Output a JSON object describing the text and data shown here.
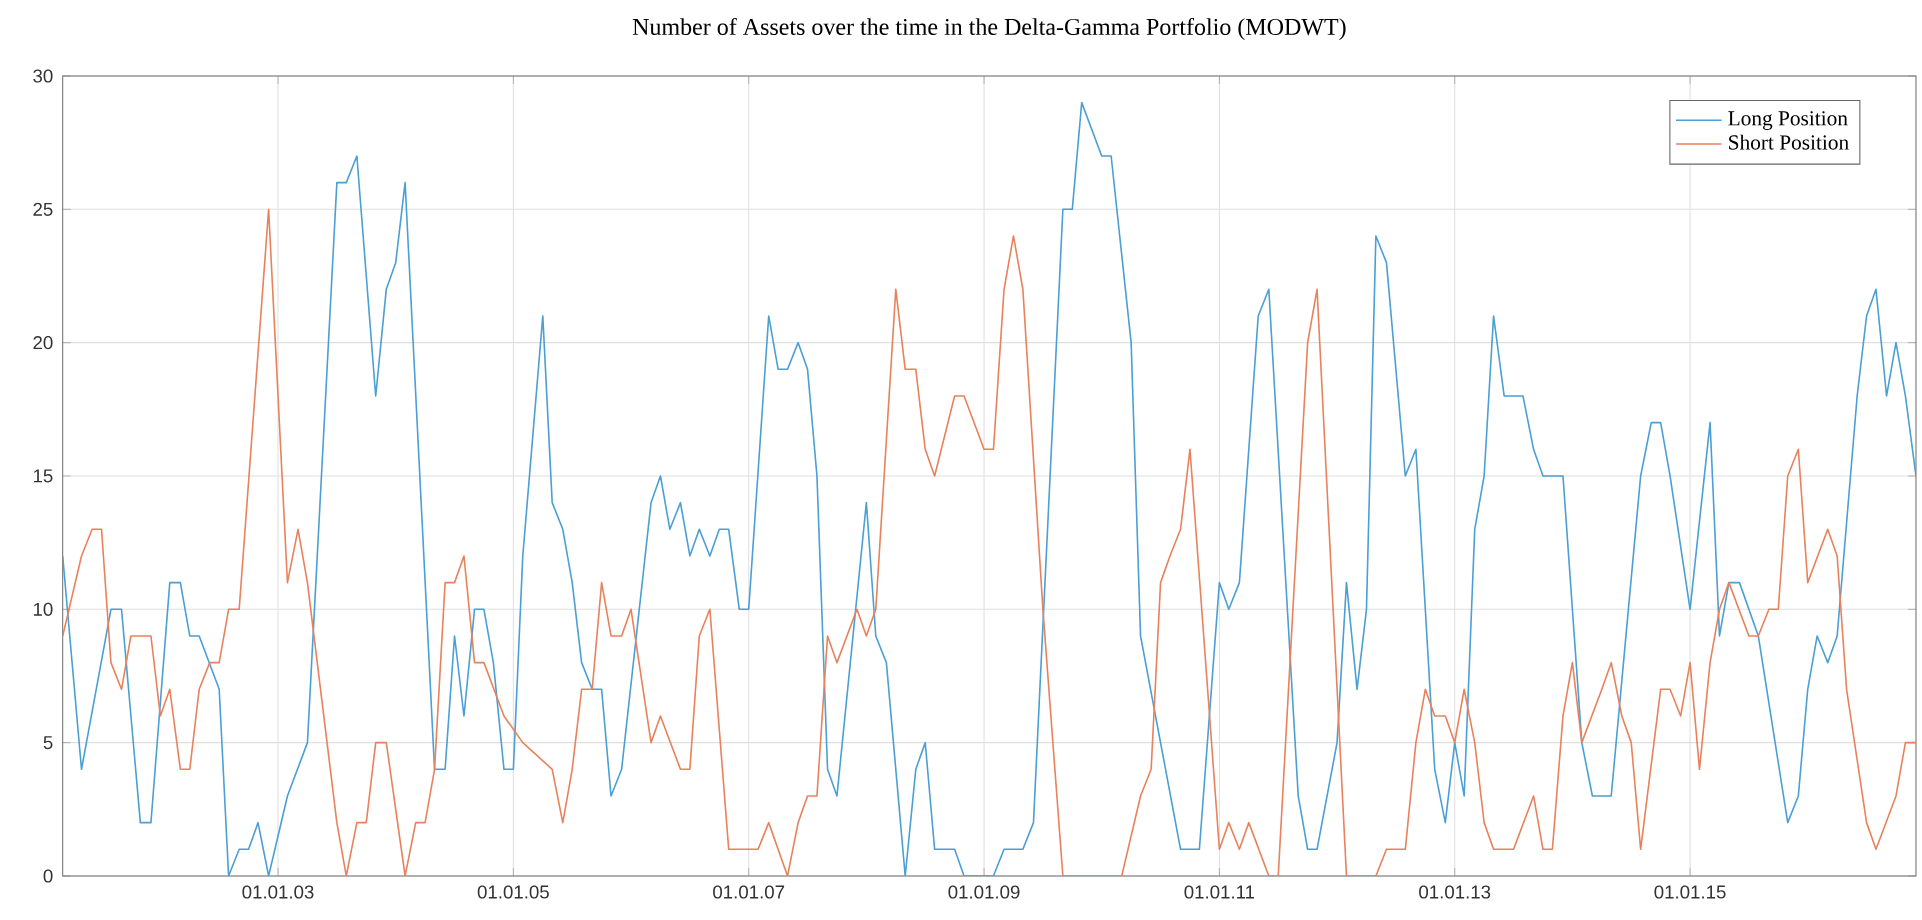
{
  "chart_data": {
    "type": "line",
    "title": "Number of Assets over the time in the Delta-Gamma Portfolio (MODWT)",
    "xlim": [
      "2001-03",
      "2016-12"
    ],
    "ylim": [
      0,
      30
    ],
    "xticks": [
      {
        "value": "2003-01-01",
        "label": "01.01.03"
      },
      {
        "value": "2005-01-01",
        "label": "01.01.05"
      },
      {
        "value": "2007-01-01",
        "label": "01.01.07"
      },
      {
        "value": "2009-01-01",
        "label": "01.01.09"
      },
      {
        "value": "2011-01-01",
        "label": "01.01.11"
      },
      {
        "value": "2013-01-01",
        "label": "01.01.13"
      },
      {
        "value": "2015-01-01",
        "label": "01.01.15"
      }
    ],
    "yticks": [
      0,
      5,
      10,
      15,
      20,
      25,
      30
    ],
    "grid": true,
    "legend": "top right",
    "series": [
      {
        "name": "Long Position",
        "color": "#4a9fd4",
        "x": [
          "2001-03",
          "2001-05",
          "2001-08",
          "2001-09",
          "2001-11",
          "2001-12",
          "2002-02",
          "2002-03",
          "2002-04",
          "2002-05",
          "2002-07",
          "2002-08",
          "2002-09",
          "2002-10",
          "2002-11",
          "2002-12",
          "2003-02",
          "2003-04",
          "2003-07",
          "2003-08",
          "2003-09",
          "2003-11",
          "2003-12",
          "2004-01",
          "2004-02",
          "2004-05",
          "2004-06",
          "2004-07",
          "2004-08",
          "2004-09",
          "2004-10",
          "2004-11",
          "2004-12",
          "2005-01",
          "2005-02",
          "2005-04",
          "2005-05",
          "2005-06",
          "2005-07",
          "2005-08",
          "2005-09",
          "2005-10",
          "2005-11",
          "2005-12",
          "2006-03",
          "2006-04",
          "2006-05",
          "2006-06",
          "2006-07",
          "2006-08",
          "2006-09",
          "2006-10",
          "2006-11",
          "2006-12",
          "2007-01",
          "2007-03",
          "2007-04",
          "2007-05",
          "2007-06",
          "2007-07",
          "2007-08",
          "2007-09",
          "2007-10",
          "2008-01",
          "2008-02",
          "2008-03",
          "2008-05",
          "2008-06",
          "2008-07",
          "2008-08",
          "2008-10",
          "2008-11",
          "2009-02",
          "2009-03",
          "2009-05",
          "2009-06",
          "2009-09",
          "2009-10",
          "2009-11",
          "2010-01",
          "2010-02",
          "2010-04",
          "2010-05",
          "2010-07",
          "2010-09",
          "2010-11",
          "2011-01",
          "2011-02",
          "2011-03",
          "2011-05",
          "2011-06",
          "2011-09",
          "2011-10",
          "2011-11",
          "2012-01",
          "2012-02",
          "2012-03",
          "2012-04",
          "2012-05",
          "2012-06",
          "2012-08",
          "2012-09",
          "2012-11",
          "2012-12",
          "2013-01",
          "2013-02",
          "2013-03",
          "2013-04",
          "2013-05",
          "2013-06",
          "2013-08",
          "2013-09",
          "2013-10",
          "2013-11",
          "2013-12",
          "2014-02",
          "2014-03",
          "2014-05",
          "2014-08",
          "2014-09",
          "2014-10",
          "2014-11",
          "2015-01",
          "2015-03",
          "2015-04",
          "2015-05",
          "2015-06",
          "2015-08",
          "2015-11",
          "2015-12",
          "2016-01",
          "2016-02",
          "2016-03",
          "2016-04",
          "2016-06",
          "2016-07",
          "2016-08",
          "2016-09",
          "2016-10",
          "2016-11",
          "2016-12"
        ],
        "values": [
          12,
          4,
          10,
          10,
          2,
          2,
          11,
          11,
          9,
          9,
          7,
          0,
          1,
          1,
          2,
          0,
          3,
          5,
          26,
          26,
          27,
          18,
          22,
          23,
          26,
          4,
          4,
          9,
          6,
          10,
          10,
          8,
          4,
          4,
          12,
          21,
          14,
          13,
          11,
          8,
          7,
          7,
          3,
          4,
          14,
          15,
          13,
          14,
          12,
          13,
          12,
          13,
          13,
          10,
          10,
          21,
          19,
          19,
          20,
          19,
          15,
          4,
          3,
          14,
          9,
          8,
          0,
          4,
          5,
          1,
          1,
          0,
          0,
          1,
          1,
          2,
          25,
          25,
          29,
          27,
          27,
          20,
          9,
          5,
          1,
          1,
          11,
          10,
          11,
          21,
          22,
          3,
          1,
          1,
          5,
          11,
          7,
          10,
          24,
          23,
          15,
          16,
          4,
          2,
          5,
          3,
          13,
          15,
          21,
          18,
          18,
          16,
          15,
          15,
          15,
          5,
          3,
          3,
          15,
          17,
          17,
          15,
          10,
          17,
          9,
          11,
          11,
          9,
          2,
          3,
          7,
          9,
          8,
          9,
          18,
          21,
          22,
          18,
          20,
          18,
          15
        ]
      },
      {
        "name": "Short Position",
        "color": "#e8815c",
        "x": [
          "2001-03",
          "2001-05",
          "2001-06",
          "2001-07",
          "2001-08",
          "2001-09",
          "2001-10",
          "2001-12",
          "2002-01",
          "2002-02",
          "2002-03",
          "2002-04",
          "2002-05",
          "2002-06",
          "2002-07",
          "2002-08",
          "2002-09",
          "2002-12",
          "2003-02",
          "2003-03",
          "2003-04",
          "2003-07",
          "2003-08",
          "2003-09",
          "2003-10",
          "2003-11",
          "2003-12",
          "2004-02",
          "2004-03",
          "2004-04",
          "2004-05",
          "2004-06",
          "2004-07",
          "2004-08",
          "2004-09",
          "2004-10",
          "2004-12",
          "2005-02",
          "2005-05",
          "2005-06",
          "2005-07",
          "2005-08",
          "2005-09",
          "2005-10",
          "2005-11",
          "2005-12",
          "2006-01",
          "2006-03",
          "2006-04",
          "2006-06",
          "2006-07",
          "2006-08",
          "2006-09",
          "2006-11",
          "2007-02",
          "2007-03",
          "2007-05",
          "2007-06",
          "2007-07",
          "2007-08",
          "2007-09",
          "2007-10",
          "2007-12",
          "2008-01",
          "2008-02",
          "2008-04",
          "2008-05",
          "2008-06",
          "2008-07",
          "2008-08",
          "2008-10",
          "2008-11",
          "2009-01",
          "2009-02",
          "2009-03",
          "2009-04",
          "2009-05",
          "2009-07",
          "2009-09",
          "2010-03",
          "2010-05",
          "2010-06",
          "2010-07",
          "2010-08",
          "2010-09",
          "2010-10",
          "2011-01",
          "2011-02",
          "2011-03",
          "2011-04",
          "2011-06",
          "2011-07",
          "2011-10",
          "2011-11",
          "2012-02",
          "2012-05",
          "2012-06",
          "2012-08",
          "2012-09",
          "2012-10",
          "2012-11",
          "2012-12",
          "2013-01",
          "2013-02",
          "2013-03",
          "2013-04",
          "2013-05",
          "2013-07",
          "2013-09",
          "2013-10",
          "2013-11",
          "2013-12",
          "2014-01",
          "2014-02",
          "2014-04",
          "2014-05",
          "2014-06",
          "2014-07",
          "2014-08",
          "2014-10",
          "2014-11",
          "2014-12",
          "2015-01",
          "2015-02",
          "2015-03",
          "2015-04",
          "2015-05",
          "2015-07",
          "2015-08",
          "2015-09",
          "2015-10",
          "2015-11",
          "2015-12",
          "2016-01",
          "2016-03",
          "2016-04",
          "2016-05",
          "2016-07",
          "2016-08",
          "2016-10",
          "2016-11",
          "2016-12"
        ],
        "values": [
          9,
          12,
          13,
          13,
          8,
          7,
          9,
          9,
          6,
          7,
          4,
          4,
          7,
          8,
          8,
          10,
          10,
          25,
          11,
          13,
          11,
          2,
          0,
          2,
          2,
          5,
          5,
          0,
          2,
          2,
          4,
          11,
          11,
          12,
          8,
          8,
          6,
          5,
          4,
          2,
          4,
          7,
          7,
          11,
          9,
          9,
          10,
          5,
          6,
          4,
          4,
          9,
          10,
          1,
          1,
          2,
          0,
          2,
          3,
          3,
          9,
          8,
          10,
          9,
          10,
          22,
          19,
          19,
          16,
          15,
          18,
          18,
          16,
          16,
          22,
          24,
          22,
          10,
          0,
          0,
          3,
          4,
          11,
          12,
          13,
          16,
          1,
          2,
          1,
          2,
          0,
          0,
          20,
          22,
          0,
          0,
          1,
          1,
          5,
          7,
          6,
          6,
          5,
          7,
          5,
          2,
          1,
          1,
          3,
          1,
          1,
          6,
          8,
          5,
          7,
          8,
          6,
          5,
          1,
          7,
          7,
          6,
          8,
          4,
          8,
          10,
          11,
          9,
          9,
          10,
          10,
          15,
          16,
          11,
          13,
          12,
          7,
          2,
          1,
          3,
          5,
          5
        ]
      }
    ]
  }
}
